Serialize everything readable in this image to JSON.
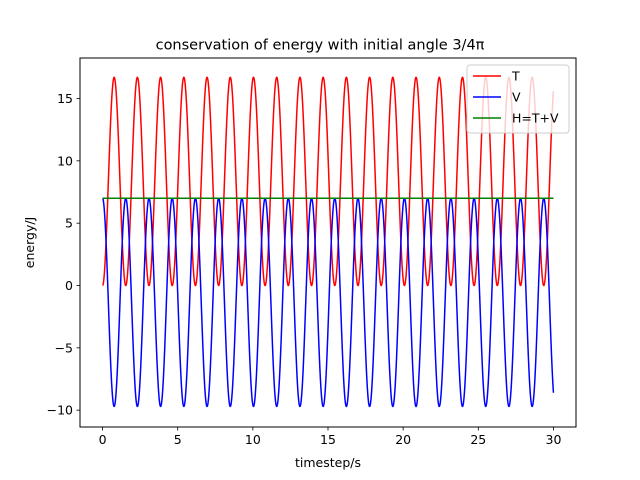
{
  "chart_data": {
    "type": "line",
    "title": "conservation of energy with initial angle 3/4π",
    "xlabel": "timestep/s",
    "ylabel": "energy/J",
    "xlim": [
      -1.5,
      31.5
    ],
    "ylim": [
      -11.35,
      18.25
    ],
    "xticks": [
      0,
      5,
      10,
      15,
      20,
      25,
      30
    ],
    "yticks": [
      -10,
      -5,
      0,
      5,
      10,
      15
    ],
    "grid": false,
    "legend_position": "top-right",
    "t_range": [
      0,
      30
    ],
    "period": 1.545,
    "series": [
      {
        "name": "T",
        "color": "#ff0000",
        "min": 0,
        "max": 16.7,
        "phase": "starts at minimum"
      },
      {
        "name": "V",
        "color": "#0000ff",
        "min": -9.7,
        "max": 7.0,
        "phase": "starts at maximum"
      },
      {
        "name": "H=T+V",
        "color": "#008000",
        "value": 7.0
      }
    ]
  }
}
